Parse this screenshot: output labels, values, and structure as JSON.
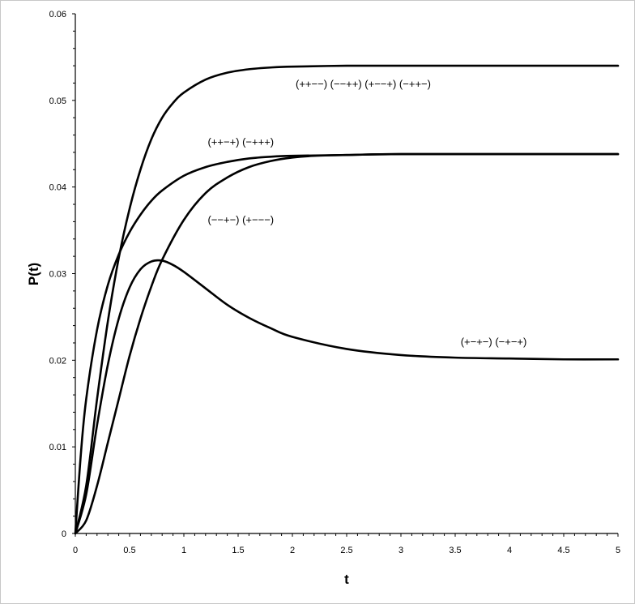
{
  "chart_data": {
    "type": "line",
    "xlabel": "t",
    "ylabel": "P(t)",
    "xlim": [
      0,
      5
    ],
    "ylim": [
      0,
      0.06
    ],
    "x_ticks": [
      "0",
      "0.5",
      "1",
      "1.5",
      "2",
      "2.5",
      "3",
      "3.5",
      "4",
      "4.5",
      "5"
    ],
    "y_ticks": [
      "0",
      "0.01",
      "0.02",
      "0.03",
      "0.04",
      "0.05",
      "0.06"
    ],
    "grid": false,
    "legend": "none",
    "series": [
      {
        "name": "(++−−) (−−++) (+−−+) (−++−)",
        "x": [
          0,
          0.1,
          0.2,
          0.3,
          0.4,
          0.5,
          0.6,
          0.7,
          0.8,
          0.9,
          1.0,
          1.2,
          1.4,
          1.6,
          1.8,
          2.0,
          2.5,
          3.0,
          4.0,
          5.0
        ],
        "y": [
          0,
          0.0055,
          0.0155,
          0.0245,
          0.0318,
          0.0375,
          0.042,
          0.0455,
          0.048,
          0.0497,
          0.0509,
          0.0524,
          0.0532,
          0.0536,
          0.0538,
          0.0539,
          0.054,
          0.054,
          0.054,
          0.054
        ]
      },
      {
        "name": "(++−+) (−+++)",
        "x": [
          0,
          0.05,
          0.1,
          0.2,
          0.3,
          0.4,
          0.5,
          0.6,
          0.7,
          0.8,
          1.0,
          1.2,
          1.4,
          1.6,
          1.8,
          2.0,
          2.5,
          3.0,
          4.0,
          5.0
        ],
        "y": [
          0,
          0.009,
          0.0155,
          0.0235,
          0.0287,
          0.0322,
          0.0348,
          0.0368,
          0.0384,
          0.0396,
          0.0413,
          0.0423,
          0.0429,
          0.0433,
          0.0435,
          0.0436,
          0.0437,
          0.0438,
          0.0438,
          0.0438
        ]
      },
      {
        "name": "(−−+−) (+−−−)",
        "x": [
          0,
          0.1,
          0.2,
          0.3,
          0.4,
          0.5,
          0.6,
          0.7,
          0.8,
          1.0,
          1.2,
          1.4,
          1.6,
          1.8,
          2.0,
          2.2,
          2.5,
          3.0,
          4.0,
          5.0
        ],
        "y": [
          0,
          0.0015,
          0.0055,
          0.0105,
          0.0155,
          0.0205,
          0.0248,
          0.0285,
          0.0316,
          0.0362,
          0.0393,
          0.0411,
          0.0423,
          0.043,
          0.0434,
          0.0436,
          0.0437,
          0.0438,
          0.0438,
          0.0438
        ]
      },
      {
        "name": "(+−+−) (−+−+)",
        "x": [
          0,
          0.1,
          0.2,
          0.3,
          0.4,
          0.5,
          0.6,
          0.7,
          0.8,
          0.9,
          1.0,
          1.2,
          1.4,
          1.6,
          1.8,
          2.0,
          2.5,
          3.0,
          3.5,
          4.0,
          4.5,
          5.0
        ],
        "y": [
          0,
          0.0045,
          0.0125,
          0.0195,
          0.0248,
          0.0284,
          0.0305,
          0.0314,
          0.0315,
          0.031,
          0.0302,
          0.0283,
          0.0264,
          0.0249,
          0.0237,
          0.0227,
          0.0213,
          0.0206,
          0.0203,
          0.0202,
          0.0201,
          0.0201
        ]
      }
    ],
    "annotations": [
      {
        "text": "(++−−) (−−++) (+−−+) (−++−)",
        "x": 2.03,
        "y": 0.0515
      },
      {
        "text": "(++−+) (−+++)",
        "x": 1.22,
        "y": 0.0448
      },
      {
        "text": "(−−+−) (+−−−)",
        "x": 1.22,
        "y": 0.0358
      },
      {
        "text": "(+−+−) (−+−+)",
        "x": 3.55,
        "y": 0.0217
      }
    ]
  }
}
